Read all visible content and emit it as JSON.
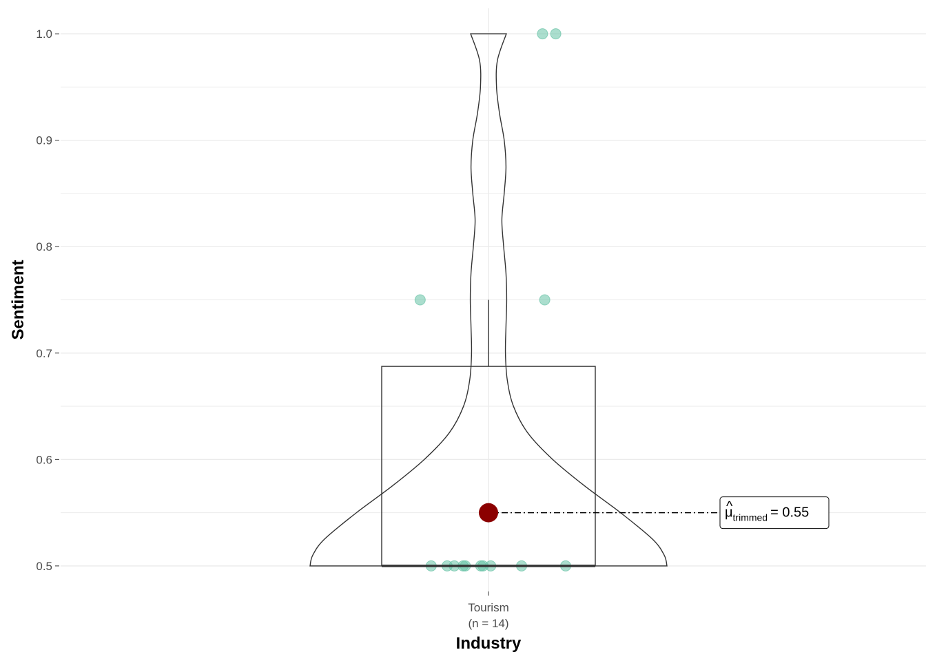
{
  "chart_data": {
    "type": "violin-box-scatter",
    "title": "",
    "xlabel": "Industry",
    "ylabel": "Sentiment",
    "categories": [
      "Tourism"
    ],
    "category_labels": [
      [
        "Tourism",
        "(n = 14)"
      ]
    ],
    "ylim": [
      0.476,
      1.024
    ],
    "yticks": [
      0.5,
      0.6,
      0.7,
      0.8,
      0.9,
      1.0
    ],
    "ytick_labels": [
      "0.5",
      "0.6",
      "0.7",
      "0.8",
      "0.9",
      "1.0"
    ],
    "grid": true,
    "points": [
      {
        "y": 0.5,
        "jitter": -0.52
      },
      {
        "y": 0.5,
        "jitter": -0.375
      },
      {
        "y": 0.5,
        "jitter": -0.31
      },
      {
        "y": 0.5,
        "jitter": -0.23
      },
      {
        "y": 0.5,
        "jitter": -0.21
      },
      {
        "y": 0.5,
        "jitter": -0.07
      },
      {
        "y": 0.5,
        "jitter": -0.05
      },
      {
        "y": 0.5,
        "jitter": 0.02
      },
      {
        "y": 0.5,
        "jitter": 0.3
      },
      {
        "y": 0.5,
        "jitter": 0.7
      },
      {
        "y": 0.75,
        "jitter": -0.62
      },
      {
        "y": 0.75,
        "jitter": 0.51
      },
      {
        "y": 1.0,
        "jitter": 0.49
      },
      {
        "y": 1.0,
        "jitter": 0.61
      }
    ],
    "box": {
      "q1": 0.5,
      "median": 0.5,
      "q3": 0.6875,
      "whisker_low": 0.5,
      "whisker_high": 0.75
    },
    "violin_profile": [
      {
        "y": 0.5,
        "w": 1.0
      },
      {
        "y": 0.51,
        "w": 0.985
      },
      {
        "y": 0.525,
        "w": 0.92
      },
      {
        "y": 0.55,
        "w": 0.74
      },
      {
        "y": 0.575,
        "w": 0.54
      },
      {
        "y": 0.6,
        "w": 0.36
      },
      {
        "y": 0.625,
        "w": 0.22
      },
      {
        "y": 0.65,
        "w": 0.14
      },
      {
        "y": 0.675,
        "w": 0.105
      },
      {
        "y": 0.7,
        "w": 0.095
      },
      {
        "y": 0.725,
        "w": 0.098
      },
      {
        "y": 0.75,
        "w": 0.102
      },
      {
        "y": 0.775,
        "w": 0.098
      },
      {
        "y": 0.8,
        "w": 0.085
      },
      {
        "y": 0.825,
        "w": 0.075
      },
      {
        "y": 0.85,
        "w": 0.088
      },
      {
        "y": 0.875,
        "w": 0.098
      },
      {
        "y": 0.9,
        "w": 0.088
      },
      {
        "y": 0.925,
        "w": 0.062
      },
      {
        "y": 0.95,
        "w": 0.045
      },
      {
        "y": 0.975,
        "w": 0.05
      },
      {
        "y": 1.0,
        "w": 0.1
      }
    ],
    "trimmed_mean": 0.55,
    "annotation": {
      "symbol": "μ̂",
      "subscript": "trimmed",
      "value_text": "= 0.55"
    },
    "colors": {
      "point": "#66C2A5",
      "mean": "#8B0000",
      "grid": "#ebebeb",
      "outline": "#333333"
    }
  }
}
